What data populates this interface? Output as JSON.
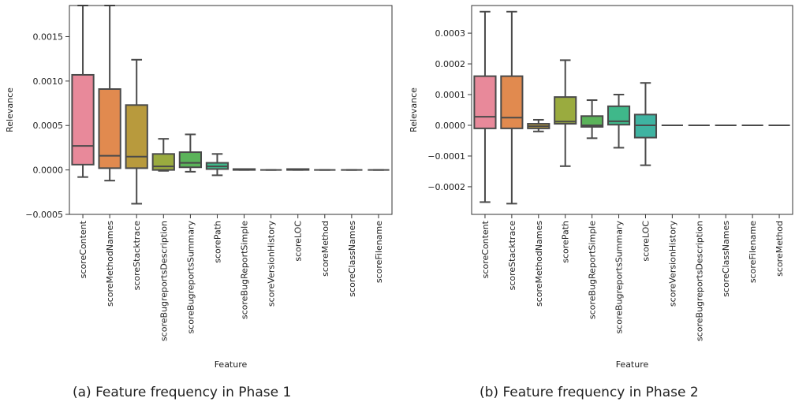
{
  "captions": [
    "(a) Feature frequency in Phase 1",
    "(b) Feature frequency in Phase 2"
  ],
  "chart_data": [
    {
      "type": "box",
      "xlabel": "Feature",
      "ylabel": "Relevance",
      "ylim": [
        -0.0005,
        0.00185
      ],
      "yticks": [
        -0.0005,
        0.0,
        0.0005,
        0.001,
        0.0015
      ],
      "ytick_labels": [
        "−0.0005",
        "0.0000",
        "0.0005",
        "0.0010",
        "0.0015"
      ],
      "grid": false,
      "categories": [
        "scoreContent",
        "scoreMethodNames",
        "scoreStacktrace",
        "scoreBugreportsDescription",
        "scoreBugreportsSummary",
        "scorePath",
        "scoreBugReportSimple",
        "scoreVersionHistory",
        "scoreLOC",
        "scoreMethod",
        "scoreClassNames",
        "scoreFilename"
      ],
      "colors": [
        "#e8899a",
        "#e18a4f",
        "#b89a3d",
        "#9aab3f",
        "#5bb35a",
        "#3fb88a",
        "#3fb3a1",
        "#3daeb5",
        "#48a8c9",
        "#7d9fe3",
        "#b38fe5",
        "#e07fcf"
      ],
      "boxes": [
        {
          "whislo": -8e-05,
          "q1": 6e-05,
          "med": 0.00027,
          "q3": 0.00107,
          "whishi": 0.00185
        },
        {
          "whislo": -0.00012,
          "q1": 2e-05,
          "med": 0.00016,
          "q3": 0.00091,
          "whishi": 0.00185
        },
        {
          "whislo": -0.00038,
          "q1": 2e-05,
          "med": 0.00015,
          "q3": 0.00073,
          "whishi": 0.00124
        },
        {
          "whislo": -1e-05,
          "q1": 0.0,
          "med": 4e-05,
          "q3": 0.00018,
          "whishi": 0.00035
        },
        {
          "whislo": -2e-05,
          "q1": 3e-05,
          "med": 8e-05,
          "q3": 0.0002,
          "whishi": 0.0004
        },
        {
          "whislo": -6e-05,
          "q1": 1e-05,
          "med": 4e-05,
          "q3": 8e-05,
          "whishi": 0.00018
        },
        {
          "whislo": 0.0,
          "q1": 0.0,
          "med": 1e-05,
          "q3": 1e-05,
          "whishi": 1e-05
        },
        {
          "whislo": 0.0,
          "q1": 0.0,
          "med": 0.0,
          "q3": 0.0,
          "whishi": 0.0
        },
        {
          "whislo": 0.0,
          "q1": 0.0,
          "med": 1e-05,
          "q3": 1e-05,
          "whishi": 1e-05
        },
        {
          "whislo": 0.0,
          "q1": 0.0,
          "med": 0.0,
          "q3": 0.0,
          "whishi": 0.0
        },
        {
          "whislo": 0.0,
          "q1": 0.0,
          "med": 0.0,
          "q3": 0.0,
          "whishi": 0.0
        },
        {
          "whislo": 0.0,
          "q1": 0.0,
          "med": 0.0,
          "q3": 0.0,
          "whishi": 0.0
        }
      ]
    },
    {
      "type": "box",
      "xlabel": "Feature",
      "ylabel": "Relevance",
      "ylim": [
        -0.00029,
        0.00039
      ],
      "yticks": [
        -0.0002,
        -0.0001,
        0.0,
        0.0001,
        0.0002,
        0.0003
      ],
      "ytick_labels": [
        "−0.0002",
        "−0.0001",
        "0.0000",
        "0.0001",
        "0.0002",
        "0.0003"
      ],
      "grid": false,
      "categories": [
        "scoreContent",
        "scoreStacktrace",
        "scoreMethodNames",
        "scorePath",
        "scoreBugReportSimple",
        "scoreBugreportsSummary",
        "scoreLOC",
        "scoreVersionHistory",
        "scoreBugreportsDescription",
        "scoreClassNames",
        "scoreFilename",
        "scoreMethod"
      ],
      "colors": [
        "#e8899a",
        "#e18a4f",
        "#b89a3d",
        "#9aab3f",
        "#5bb35a",
        "#3fb88a",
        "#3fb3a1",
        "#3daeb5",
        "#48a8c9",
        "#7d9fe3",
        "#b38fe5",
        "#e07fcf"
      ],
      "boxes": [
        {
          "whislo": -0.00025,
          "q1": -1e-05,
          "med": 2.8e-05,
          "q3": 0.00016,
          "whishi": 0.00037
        },
        {
          "whislo": -0.000255,
          "q1": -1e-05,
          "med": 2.5e-05,
          "q3": 0.00016,
          "whishi": 0.00037
        },
        {
          "whislo": -2e-05,
          "q1": -1e-05,
          "med": -3e-06,
          "q3": 5e-06,
          "whishi": 1.8e-05
        },
        {
          "whislo": -0.000133,
          "q1": 5e-06,
          "med": 1.2e-05,
          "q3": 9.2e-05,
          "whishi": 0.000212
        },
        {
          "whislo": -4.2e-05,
          "q1": -5e-06,
          "med": 0.0,
          "q3": 3e-05,
          "whishi": 8.2e-05
        },
        {
          "whislo": -7.3e-05,
          "q1": 2e-06,
          "med": 1.3e-05,
          "q3": 6.2e-05,
          "whishi": 0.0001
        },
        {
          "whislo": -0.00013,
          "q1": -4e-05,
          "med": 0.0,
          "q3": 3.5e-05,
          "whishi": 0.000138
        },
        {
          "whislo": 0.0,
          "q1": 0.0,
          "med": 0.0,
          "q3": 0.0,
          "whishi": 0.0
        },
        {
          "whislo": 0.0,
          "q1": 0.0,
          "med": 0.0,
          "q3": 0.0,
          "whishi": 0.0
        },
        {
          "whislo": 0.0,
          "q1": 0.0,
          "med": 0.0,
          "q3": 0.0,
          "whishi": 0.0
        },
        {
          "whislo": 0.0,
          "q1": 0.0,
          "med": 0.0,
          "q3": 0.0,
          "whishi": 0.0
        },
        {
          "whislo": 0.0,
          "q1": 0.0,
          "med": 0.0,
          "q3": 0.0,
          "whishi": 0.0
        }
      ]
    }
  ]
}
